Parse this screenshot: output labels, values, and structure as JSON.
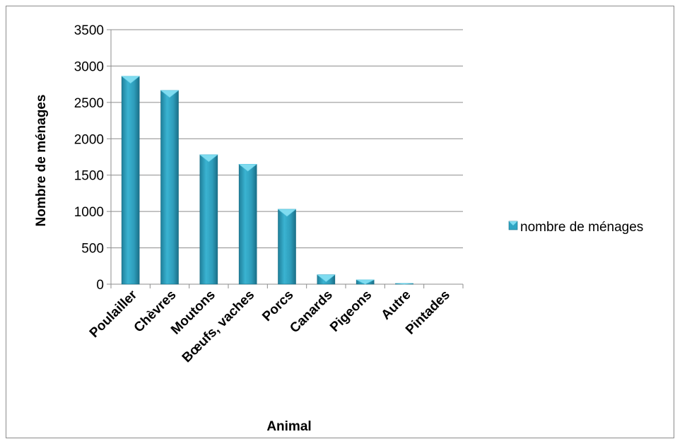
{
  "chart_data": {
    "type": "bar",
    "categories": [
      "Poulailler",
      "Chèvres",
      "Moutons",
      "Bœufs, vaches",
      "Porcs",
      "Canards",
      "Pigeons",
      "Autre",
      "Pintades"
    ],
    "series": [
      {
        "name": "nombre de ménages",
        "values": [
          2860,
          2665,
          1780,
          1650,
          1030,
          130,
          60,
          10,
          0
        ]
      }
    ],
    "xlabel": "Animal",
    "ylabel": "Nombre de ménages",
    "ylim": [
      0,
      3500
    ],
    "yticks": [
      "0",
      "500",
      "1000",
      "1500",
      "2000",
      "2500",
      "3000",
      "3500"
    ],
    "grid": true,
    "legend_position": "right",
    "colors": {
      "bar_side": "#1e8aa8",
      "bar_front": "#2fa5c4",
      "bar_top": "#7fdcf0",
      "gridline": "#8c8c8c"
    }
  }
}
